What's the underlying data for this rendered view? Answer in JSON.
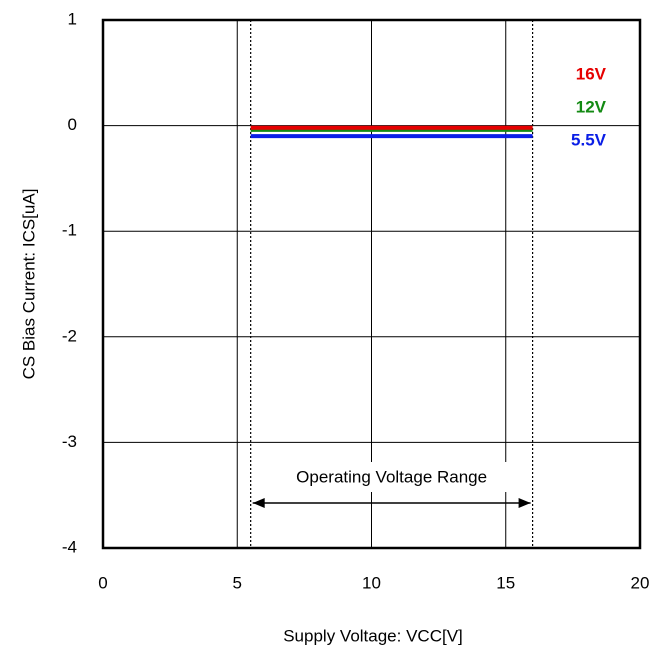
{
  "chart_data": {
    "type": "line",
    "xlabel": "Supply Voltage: VCC[V]",
    "ylabel": "CS Bias Current: ICS[uA]",
    "xlim": [
      0,
      20
    ],
    "xticks": [
      0,
      5,
      10,
      15,
      20
    ],
    "ylim": [
      -4,
      1
    ],
    "yticks": [
      -4,
      -3,
      -2,
      -1,
      0,
      1
    ],
    "grid": true,
    "annotation": {
      "text": "Operating Voltage Range",
      "range": [
        5.5,
        16
      ]
    },
    "series": [
      {
        "name": "16V",
        "color": "#e60000",
        "x": [
          5.5,
          16
        ],
        "values": [
          -0.02,
          -0.02
        ]
      },
      {
        "name": "12V",
        "color": "#138a13",
        "x": [
          5.5,
          16
        ],
        "values": [
          -0.04,
          -0.04
        ]
      },
      {
        "name": "5.5V",
        "color": "#0a1ee6",
        "x": [
          5.5,
          16
        ],
        "values": [
          -0.1,
          -0.1
        ]
      }
    ]
  }
}
